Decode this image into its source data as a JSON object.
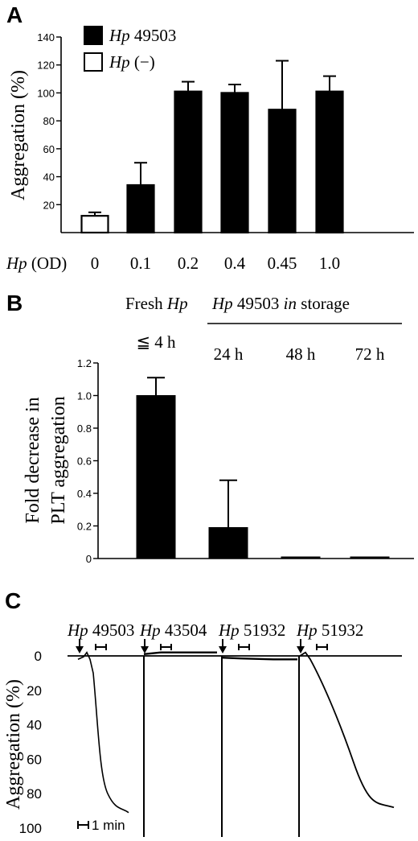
{
  "chart_data": [
    {
      "panel": "A",
      "type": "bar",
      "xlabel_italic": "Hp",
      "xlabel_rest": " (OD)",
      "ylabel": "Aggregation (%)",
      "categories": [
        "0",
        "0.1",
        "0.2",
        "0.4",
        "0.45",
        "1.0"
      ],
      "values": [
        12,
        34,
        101,
        100,
        88,
        101
      ],
      "errors": [
        2.5,
        16,
        7,
        6,
        35,
        11
      ],
      "fills": [
        "#ffffff",
        "#000000",
        "#000000",
        "#000000",
        "#000000",
        "#000000"
      ],
      "yticks": [
        20,
        40,
        60,
        80,
        100,
        120,
        140
      ],
      "ylim": [
        0,
        140
      ],
      "legend": [
        {
          "italic": "Hp",
          "rest": " 49503",
          "fill": "#000000"
        },
        {
          "italic": "Hp",
          "rest": " (−)",
          "fill": "#ffffff"
        }
      ]
    },
    {
      "panel": "B",
      "type": "bar",
      "ylabel_line1": "Fold decrease in",
      "ylabel_line2": "PLT aggregation",
      "header_left_line1": "Fresh ",
      "header_left_line1_italic": "Hp",
      "header_left_line2": "≦ 4 h",
      "header_right_italic1": "Hp",
      "header_right_mid": " 49503 ",
      "header_right_italic2": "in",
      "header_right_end": " storage",
      "categories": [
        "≦ 4 h",
        "24 h",
        "48 h",
        "72 h"
      ],
      "values": [
        1.0,
        0.19,
        0.005,
        0.005
      ],
      "errors": [
        0.11,
        0.29,
        0,
        0
      ],
      "yticks": [
        "0",
        "0.2",
        "0.4",
        "0.6",
        "0.8",
        "1.0",
        "1.2"
      ],
      "ylim": [
        0,
        1.2
      ]
    },
    {
      "panel": "C",
      "type": "line",
      "ylabel": "Aggregation (%)",
      "yticks": [
        0,
        20,
        40,
        60,
        80,
        100
      ],
      "ylim": [
        0,
        100
      ],
      "scale_label": "1 min",
      "traces": [
        {
          "italic": "Hp",
          "rest": " 49503",
          "final": 91
        },
        {
          "italic": "Hp",
          "rest": " 43504",
          "final": -2
        },
        {
          "italic": "Hp",
          "rest": " 51932",
          "final": 2
        },
        {
          "italic": "Hp",
          "rest": " 51932",
          "final": 88
        }
      ]
    }
  ]
}
